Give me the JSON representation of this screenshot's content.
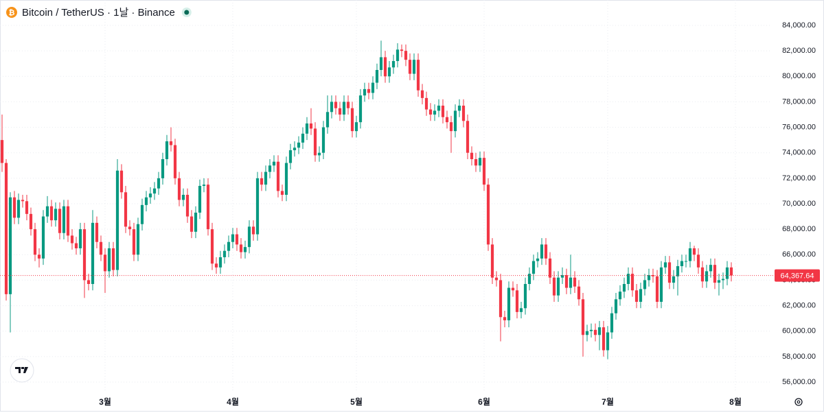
{
  "chart_data": {
    "type": "candlestick",
    "title": "Bitcoin / TetherUS · 1날 · Binance",
    "up_color": "#089981",
    "down_color": "#f23645",
    "grid": true,
    "open": [
      75000,
      73200,
      62900,
      70500,
      68900,
      70300,
      70200,
      69200,
      68000,
      66000,
      65700,
      69000,
      69800,
      68700,
      69600,
      67700,
      69800,
      67500,
      66900,
      66500,
      68000,
      64000,
      63700,
      68500,
      67000,
      66000,
      64700,
      66500,
      64800,
      72600,
      70900,
      68200,
      68000,
      66000,
      68400,
      69900,
      70500,
      70800,
      71200,
      72000,
      73500,
      74900,
      74600,
      72000,
      70300,
      70700,
      69000,
      67800,
      69300,
      71400,
      71500,
      68000,
      65300,
      65000,
      65800,
      66300,
      67000,
      67600,
      66800,
      66200,
      66600,
      68200,
      67600,
      72000,
      71500,
      72500,
      73000,
      73300,
      71000,
      70700,
      73200,
      74200,
      74400,
      74800,
      75500,
      76300,
      75900,
      73800,
      74000,
      76000,
      77200,
      78000,
      77500,
      77000,
      78000,
      77500,
      75700,
      76400,
      78500,
      79000,
      78700,
      79500,
      80500,
      81500,
      80000,
      80700,
      81200,
      82100,
      82000,
      81300,
      80200,
      81300,
      78900,
      78300,
      77400,
      77000,
      77300,
      77700,
      76800,
      76400,
      75700,
      77300,
      77700,
      76500,
      74000,
      73500,
      73000,
      73600,
      71500,
      66800,
      64200,
      64000,
      61100,
      60850,
      63400,
      63200,
      61500,
      61800,
      63700,
      64500,
      65500,
      65700,
      66800,
      65700,
      64200,
      62800,
      64200,
      64400,
      63400,
      64200,
      63500,
      62500,
      59700,
      60000,
      60100,
      59700,
      60300,
      58500,
      59900,
      61400,
      62500,
      63100,
      63700,
      64500,
      63200,
      62300,
      63300,
      64000,
      64400,
      64300,
      62300,
      65000,
      65400,
      63800,
      64300,
      65100,
      65500,
      65500,
      66500,
      66000,
      65000,
      63900,
      64700,
      65200,
      63800,
      64000,
      64100,
      65000
    ],
    "high": [
      77000,
      73500,
      70900,
      71000,
      70800,
      70700,
      70700,
      69700,
      68500,
      66500,
      69500,
      70600,
      70300,
      70100,
      70100,
      70300,
      70300,
      68000,
      67400,
      68500,
      68500,
      64500,
      69500,
      69000,
      67500,
      66500,
      67000,
      67000,
      73500,
      73100,
      71400,
      68700,
      68500,
      68900,
      70400,
      71000,
      71300,
      71700,
      72500,
      74000,
      75400,
      76000,
      75100,
      72500,
      71200,
      71200,
      69500,
      69800,
      71900,
      72000,
      72000,
      68500,
      65800,
      66300,
      66800,
      67500,
      68100,
      68100,
      67300,
      67100,
      68700,
      68700,
      72500,
      72500,
      73000,
      73500,
      73800,
      73800,
      71500,
      73700,
      74700,
      74900,
      75300,
      76000,
      76800,
      77500,
      76400,
      74500,
      76500,
      78500,
      78500,
      78500,
      78000,
      78500,
      78500,
      78000,
      76900,
      79000,
      79500,
      79500,
      80000,
      81000,
      82800,
      82000,
      81200,
      81700,
      82600,
      82500,
      82500,
      81800,
      81800,
      81800,
      79400,
      78800,
      77900,
      77800,
      78200,
      78200,
      77300,
      76900,
      77800,
      78200,
      78200,
      77000,
      74500,
      74000,
      74100,
      74100,
      72000,
      67300,
      64700,
      64500,
      61600,
      63900,
      63900,
      63700,
      62300,
      64200,
      65000,
      66000,
      66200,
      67300,
      67300,
      66200,
      64700,
      64700,
      65000,
      64900,
      66000,
      64700,
      64000,
      63000,
      60500,
      60600,
      60600,
      60800,
      60800,
      60400,
      61900,
      63000,
      63600,
      64200,
      65000,
      65000,
      63700,
      63800,
      64500,
      64900,
      64900,
      64800,
      65500,
      65900,
      65900,
      64800,
      65600,
      66000,
      66000,
      67000,
      66700,
      66500,
      65500,
      65200,
      65700,
      65700,
      64500,
      64600,
      65500,
      65400
    ],
    "low": [
      72500,
      62400,
      59900,
      68400,
      68400,
      69700,
      68700,
      67500,
      65500,
      65000,
      65200,
      68500,
      68200,
      68200,
      67200,
      67200,
      67000,
      66400,
      66000,
      66000,
      62600,
      63200,
      63200,
      66500,
      65500,
      63000,
      64200,
      64300,
      64300,
      70400,
      67700,
      67500,
      65500,
      65500,
      67900,
      69400,
      70000,
      70300,
      70700,
      71500,
      73000,
      74100,
      71500,
      69800,
      69800,
      68500,
      67300,
      67300,
      68800,
      70900,
      67500,
      64800,
      64500,
      64500,
      65300,
      65800,
      66500,
      66300,
      65700,
      65700,
      66100,
      67100,
      67100,
      71000,
      71000,
      72000,
      72500,
      70500,
      70200,
      70200,
      72700,
      73700,
      73900,
      74300,
      75000,
      75400,
      73300,
      73300,
      73500,
      75500,
      76700,
      77000,
      76500,
      76500,
      77000,
      75200,
      75200,
      75900,
      78000,
      78200,
      78200,
      79000,
      80000,
      79500,
      79500,
      80200,
      80700,
      81500,
      80800,
      79700,
      79700,
      78400,
      77800,
      76900,
      76500,
      76500,
      76800,
      76300,
      75900,
      74000,
      75200,
      76800,
      76000,
      73500,
      73000,
      72500,
      72500,
      71000,
      66300,
      63700,
      63500,
      59200,
      60300,
      60300,
      62700,
      61000,
      61000,
      61300,
      63200,
      64000,
      65000,
      65200,
      65200,
      63700,
      62300,
      62300,
      63700,
      62900,
      62900,
      63000,
      62000,
      58000,
      59200,
      59500,
      59200,
      58500,
      58000,
      57800,
      59400,
      60900,
      62000,
      62600,
      63200,
      62700,
      61800,
      61800,
      62800,
      63500,
      63800,
      61800,
      61800,
      64500,
      63300,
      63300,
      62800,
      64600,
      65000,
      65000,
      65500,
      64500,
      63400,
      63400,
      64200,
      63300,
      62800,
      63300,
      63600,
      63900
    ],
    "close": [
      73200,
      62900,
      70500,
      68900,
      70300,
      70200,
      69200,
      68000,
      66000,
      65700,
      69000,
      69800,
      68700,
      69600,
      67700,
      69800,
      67500,
      66900,
      66500,
      68000,
      64000,
      63700,
      68500,
      67000,
      66000,
      64700,
      66500,
      64800,
      72600,
      70900,
      68200,
      68000,
      66000,
      68400,
      69900,
      70500,
      70800,
      71200,
      72000,
      73500,
      74900,
      74600,
      72000,
      70300,
      70700,
      69000,
      67800,
      69300,
      71400,
      71500,
      68000,
      65300,
      65000,
      65800,
      66300,
      67000,
      67600,
      66800,
      66200,
      66600,
      68200,
      67600,
      72000,
      71500,
      72500,
      73000,
      73300,
      71000,
      70700,
      73200,
      74200,
      74400,
      74800,
      75500,
      76300,
      75900,
      73800,
      74000,
      76000,
      77200,
      78000,
      77500,
      77000,
      78000,
      77500,
      75700,
      76400,
      78500,
      79000,
      78700,
      79500,
      80500,
      81500,
      80000,
      80700,
      81200,
      82100,
      82000,
      81300,
      80200,
      81300,
      78900,
      78300,
      77400,
      77000,
      77300,
      77700,
      76800,
      76400,
      75700,
      77300,
      77700,
      76500,
      74000,
      73500,
      73000,
      73600,
      71500,
      66800,
      64200,
      64000,
      61100,
      60850,
      63400,
      63200,
      61500,
      61800,
      63700,
      64500,
      65500,
      65700,
      66800,
      65700,
      64200,
      62800,
      64200,
      64400,
      63400,
      64200,
      63500,
      62500,
      59700,
      60000,
      60100,
      59700,
      60300,
      58500,
      59900,
      61400,
      62500,
      63100,
      63700,
      64500,
      63200,
      62300,
      63300,
      64000,
      64400,
      64300,
      62300,
      65000,
      65400,
      63800,
      64300,
      65100,
      65500,
      65500,
      66500,
      66000,
      65000,
      63900,
      64700,
      65200,
      63800,
      64000,
      64100,
      65000,
      64367.64
    ],
    "last_price": {
      "value": 64367.64,
      "label": "64,367.64"
    },
    "xlim": [
      -0.5,
      186.5
    ],
    "xticks": [
      {
        "value": 25,
        "label": "3월"
      },
      {
        "value": 56,
        "label": "4월"
      },
      {
        "value": 86,
        "label": "5월"
      },
      {
        "value": 117,
        "label": "6월"
      },
      {
        "value": 147,
        "label": "7월"
      },
      {
        "value": 178,
        "label": "8월"
      }
    ],
    "ylim": [
      55000,
      85000
    ],
    "yticks": [
      {
        "value": 56000,
        "label": "56,000.00"
      },
      {
        "value": 58000,
        "label": "58,000.00"
      },
      {
        "value": 60000,
        "label": "60,000.00"
      },
      {
        "value": 62000,
        "label": "62,000.00"
      },
      {
        "value": 64000,
        "label": "64,000.00"
      },
      {
        "value": 66000,
        "label": "66,000.00"
      },
      {
        "value": 68000,
        "label": "68,000.00"
      },
      {
        "value": 70000,
        "label": "70,000.00"
      },
      {
        "value": 72000,
        "label": "72,000.00"
      },
      {
        "value": 74000,
        "label": "74,000.00"
      },
      {
        "value": 76000,
        "label": "76,000.00"
      },
      {
        "value": 78000,
        "label": "78,000.00"
      },
      {
        "value": 80000,
        "label": "80,000.00"
      },
      {
        "value": 82000,
        "label": "82,000.00"
      },
      {
        "value": 84000,
        "label": "84,000.00"
      }
    ]
  }
}
